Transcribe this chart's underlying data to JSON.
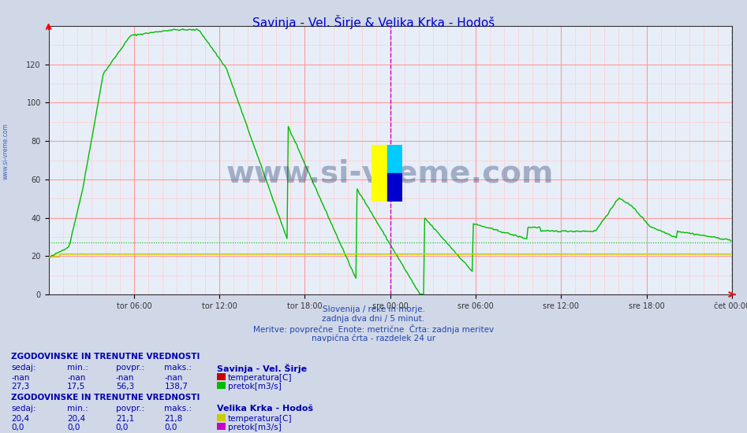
{
  "title": "Savinja - Vel. Širje & Velika Krka - Hodoš",
  "title_color": "#0000cc",
  "bg_color": "#d0d8e8",
  "plot_bg_color": "#e8eef8",
  "grid_color_major": "#ff9999",
  "grid_color_minor": "#ffcccc",
  "ylim": [
    0,
    140
  ],
  "yticks": [
    0,
    20,
    40,
    60,
    80,
    100,
    120
  ],
  "n_points": 576,
  "x_tick_labels": [
    "tor 06:00",
    "tor 12:00",
    "tor 18:00",
    "sre 00:00",
    "sre 06:00",
    "sre 12:00",
    "sre 18:00",
    "čet 00:00"
  ],
  "x_tick_positions": [
    72,
    144,
    216,
    288,
    360,
    432,
    504,
    576
  ],
  "vline_positions": [
    288,
    576
  ],
  "savinja_pretok_color": "#00bb00",
  "savinja_temp_color": "#cc0000",
  "krka_temp_color": "#cccc00",
  "krka_pretok_color": "#cc00cc",
  "watermark": "www.si-vreme.com",
  "subtitle_lines": [
    "Slovenija / reke in morje.",
    "zadnja dva dni / 5 minut.",
    "Meritve: povprečne  Enote: metrične  Črta: zadnja meritev",
    "navpična črta - razdelek 24 ur"
  ],
  "table1_header": "ZGODOVINSKE IN TRENUTNE VREDNOSTI",
  "table1_station": "Savinja - Vel. Širje",
  "table1_cols": [
    "sedaj:",
    "min.:",
    "povpr.:",
    "maks.:"
  ],
  "table1_row1": [
    "-nan",
    "-nan",
    "-nan",
    "-nan"
  ],
  "table1_row1_label": "temperatura[C]",
  "table1_row1_color": "#cc0000",
  "table1_row2": [
    "27,3",
    "17,5",
    "56,3",
    "138,7"
  ],
  "table1_row2_label": "pretok[m3/s]",
  "table1_row2_color": "#00bb00",
  "table2_header": "ZGODOVINSKE IN TRENUTNE VREDNOSTI",
  "table2_station": "Velika Krka - Hodoš",
  "table2_cols": [
    "sedaj:",
    "min.:",
    "povpr.:",
    "maks.:"
  ],
  "table2_row1": [
    "20,4",
    "20,4",
    "21,1",
    "21,8"
  ],
  "table2_row1_label": "temperatura[C]",
  "table2_row1_color": "#cccc00",
  "table2_row2": [
    "0,0",
    "0,0",
    "0,0",
    "0,0"
  ],
  "table2_row2_label": "pretok[m3/s]",
  "table2_row2_color": "#cc00cc",
  "avg_line_savinja": 27.3,
  "avg_line_krka_temp": 21.1
}
